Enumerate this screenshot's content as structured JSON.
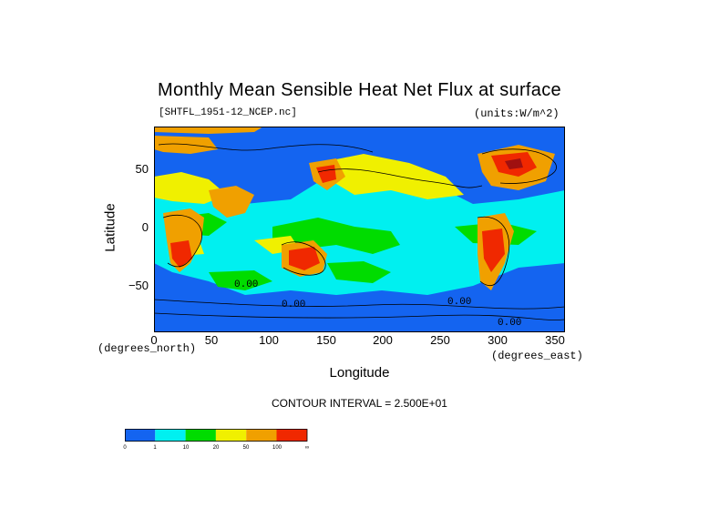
{
  "title": "Monthly Mean Sensible Heat Net Flux at surface",
  "file_label": "[SHTFL_1951-12_NCEP.nc]",
  "units_label": "(units:W/m^2)",
  "y_axis": {
    "label": "Latitude",
    "ticks": [
      "50",
      "0",
      "−50"
    ]
  },
  "x_axis": {
    "label": "Longitude",
    "ticks": [
      "0",
      "50",
      "100",
      "150",
      "200",
      "250",
      "300",
      "350"
    ],
    "unit_left": "(degrees_north)",
    "unit_right": "(degrees_east)"
  },
  "contour_interval": "CONTOUR INTERVAL = 2.500E+01",
  "contour_labels": [
    "0.00",
    "0.00",
    "0.00",
    "0.00"
  ],
  "legend": {
    "colors": [
      "#1464f0",
      "#00f0f0",
      "#00dc00",
      "#f0f000",
      "#f0a000",
      "#f02800"
    ],
    "labels": [
      "0",
      "1",
      "10",
      "20",
      "50",
      "100",
      "∞"
    ]
  },
  "map_colors": {
    "deep_blue": "#1464f0",
    "cyan": "#00f0f0",
    "green": "#00dc00",
    "yellow": "#f0f000",
    "orange": "#f0a000",
    "red": "#f02800",
    "dark_red": "#a01010"
  },
  "chart_data": {
    "type": "heatmap",
    "title": "Monthly Mean Sensible Heat Net Flux at surface",
    "xlabel": "Longitude",
    "ylabel": "Latitude",
    "xlim": [
      0,
      360
    ],
    "ylim": [
      -90,
      90
    ],
    "x_ticks": [
      0,
      50,
      100,
      150,
      200,
      250,
      300,
      350
    ],
    "y_ticks": [
      50,
      0,
      -50
    ],
    "units": "W/m^2",
    "color_levels": [
      0,
      1,
      10,
      20,
      50,
      100
    ],
    "contour_interval": 25
  }
}
